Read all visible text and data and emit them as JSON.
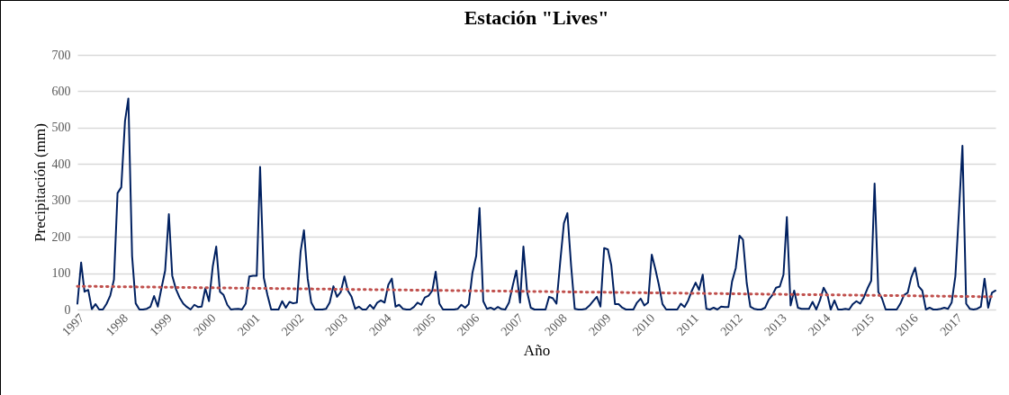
{
  "chart_data": {
    "type": "line",
    "title": "Estación \"Lives\"",
    "xlabel": "Año",
    "ylabel": "Precipitación (mm)",
    "x": [
      "1997-01",
      "1997-02",
      "1997-03",
      "1997-04",
      "1997-05",
      "1997-06",
      "1997-07",
      "1997-08",
      "1997-09",
      "1997-10",
      "1997-11",
      "1997-12",
      "1998-01",
      "1998-02",
      "1998-03",
      "1998-04",
      "1998-05",
      "1998-06",
      "1998-07",
      "1998-08",
      "1998-09",
      "1998-10",
      "1998-11",
      "1998-12",
      "1999-01",
      "1999-02",
      "1999-03",
      "1999-04",
      "1999-05",
      "1999-06",
      "1999-07",
      "1999-08",
      "1999-09",
      "1999-10",
      "1999-11",
      "1999-12",
      "2000-01",
      "2000-02",
      "2000-03",
      "2000-04",
      "2000-05",
      "2000-06",
      "2000-07",
      "2000-08",
      "2000-09",
      "2000-10",
      "2000-11",
      "2000-12",
      "2001-01",
      "2001-02",
      "2001-03",
      "2001-04",
      "2001-05",
      "2001-06",
      "2001-07",
      "2001-08",
      "2001-09",
      "2001-10",
      "2001-11",
      "2001-12",
      "2002-01",
      "2002-02",
      "2002-03",
      "2002-04",
      "2002-05",
      "2002-06",
      "2002-07",
      "2002-08",
      "2002-09",
      "2002-10",
      "2002-11",
      "2002-12",
      "2003-01",
      "2003-02",
      "2003-03",
      "2003-04",
      "2003-05",
      "2003-06",
      "2003-07",
      "2003-08",
      "2003-09",
      "2003-10",
      "2003-11",
      "2003-12",
      "2004-01",
      "2004-02",
      "2004-03",
      "2004-04",
      "2004-05",
      "2004-06",
      "2004-07",
      "2004-08",
      "2004-09",
      "2004-10",
      "2004-11",
      "2004-12",
      "2005-01",
      "2005-02",
      "2005-03",
      "2005-04",
      "2005-05",
      "2005-06",
      "2005-07",
      "2005-08",
      "2005-09",
      "2005-10",
      "2005-11",
      "2005-12",
      "2006-01",
      "2006-02",
      "2006-03",
      "2006-04",
      "2006-05",
      "2006-06",
      "2006-07",
      "2006-08",
      "2006-09",
      "2006-10",
      "2006-11",
      "2006-12",
      "2007-01",
      "2007-02",
      "2007-03",
      "2007-04",
      "2007-05",
      "2007-06",
      "2007-07",
      "2007-08",
      "2007-09",
      "2007-10",
      "2007-11",
      "2007-12",
      "2008-01",
      "2008-02",
      "2008-03",
      "2008-04",
      "2008-05",
      "2008-06",
      "2008-07",
      "2008-08",
      "2008-09",
      "2008-10",
      "2008-11",
      "2008-12",
      "2009-01",
      "2009-02",
      "2009-03",
      "2009-04",
      "2009-05",
      "2009-06",
      "2009-07",
      "2009-08",
      "2009-09",
      "2009-10",
      "2009-11",
      "2009-12",
      "2010-01",
      "2010-02",
      "2010-03",
      "2010-04",
      "2010-05",
      "2010-06",
      "2010-07",
      "2010-08",
      "2010-09",
      "2010-10",
      "2010-11",
      "2010-12",
      "2011-01",
      "2011-02",
      "2011-03",
      "2011-04",
      "2011-05",
      "2011-06",
      "2011-07",
      "2011-08",
      "2011-09",
      "2011-10",
      "2011-11",
      "2011-12",
      "2012-01",
      "2012-02",
      "2012-03",
      "2012-04",
      "2012-05",
      "2012-06",
      "2012-07",
      "2012-08",
      "2012-09",
      "2012-10",
      "2012-11",
      "2012-12",
      "2013-01",
      "2013-02",
      "2013-03",
      "2013-04",
      "2013-05",
      "2013-06",
      "2013-07",
      "2013-08",
      "2013-09",
      "2013-10",
      "2013-11",
      "2013-12",
      "2014-01",
      "2014-02",
      "2014-03",
      "2014-04",
      "2014-05",
      "2014-06",
      "2014-07",
      "2014-08",
      "2014-09",
      "2014-10",
      "2014-11",
      "2014-12",
      "2015-01",
      "2015-02",
      "2015-03",
      "2015-04",
      "2015-05",
      "2015-06",
      "2015-07",
      "2015-08",
      "2015-09",
      "2015-10",
      "2015-11",
      "2015-12",
      "2016-01",
      "2016-02",
      "2016-03",
      "2016-04",
      "2016-05",
      "2016-06",
      "2016-07",
      "2016-08",
      "2016-09",
      "2016-10",
      "2016-11",
      "2016-12",
      "2017-01",
      "2017-02",
      "2017-03",
      "2017-04",
      "2017-05",
      "2017-06",
      "2017-07",
      "2017-08",
      "2017-09",
      "2017-10",
      "2017-11",
      "2017-12"
    ],
    "series": [
      {
        "color": "#002060",
        "values": [
          16,
          129,
          49,
          54,
          1,
          15,
          0,
          0,
          16,
          38,
          82,
          320,
          336,
          518,
          580,
          147,
          17,
          0,
          0,
          2,
          8,
          37,
          8,
          58,
          107,
          262,
          93,
          56,
          33,
          16,
          7,
          0,
          13,
          7,
          8,
          58,
          23,
          118,
          173,
          49,
          40,
          13,
          0,
          1,
          2,
          0,
          16,
          91,
          93,
          93,
          392,
          87,
          40,
          0,
          0,
          0,
          23,
          5,
          21,
          17,
          19,
          159,
          218,
          85,
          19,
          0,
          0,
          0,
          2,
          19,
          64,
          35,
          48,
          91,
          52,
          35,
          2,
          8,
          0,
          0,
          13,
          2,
          19,
          25,
          19,
          68,
          85,
          8,
          13,
          2,
          0,
          0,
          7,
          19,
          13,
          33,
          38,
          52,
          104,
          16,
          0,
          0,
          0,
          0,
          2,
          13,
          5,
          15,
          101,
          147,
          279,
          23,
          2,
          5,
          0,
          7,
          1,
          0,
          19,
          64,
          107,
          19,
          173,
          48,
          5,
          0,
          0,
          0,
          0,
          35,
          31,
          16,
          130,
          237,
          265,
          120,
          2,
          0,
          0,
          2,
          11,
          23,
          35,
          8,
          169,
          165,
          122,
          15,
          15,
          5,
          0,
          0,
          0,
          19,
          30,
          11,
          19,
          151,
          114,
          68,
          15,
          0,
          0,
          0,
          0,
          16,
          7,
          25,
          52,
          74,
          54,
          96,
          2,
          0,
          5,
          0,
          8,
          7,
          7,
          77,
          114,
          203,
          192,
          73,
          8,
          2,
          0,
          0,
          5,
          27,
          40,
          60,
          63,
          96,
          254,
          11,
          52,
          5,
          2,
          2,
          2,
          21,
          0,
          25,
          60,
          41,
          0,
          25,
          0,
          0,
          2,
          0,
          15,
          23,
          16,
          33,
          58,
          79,
          346,
          48,
          31,
          0,
          0,
          0,
          0,
          16,
          40,
          46,
          89,
          115,
          64,
          52,
          0,
          5,
          0,
          0,
          2,
          5,
          2,
          19,
          91,
          275,
          450,
          16,
          2,
          0,
          2,
          8,
          85,
          5,
          46,
          52
        ]
      },
      {
        "type": "line",
        "color": "#c0504d",
        "line_style": "dotted",
        "x": [
          "1997-01",
          "2017-12"
        ],
        "values": [
          64,
          35
        ]
      }
    ],
    "xlim": [
      "1997-01",
      "2017-12"
    ],
    "xticks": [
      "1997",
      "1998",
      "1999",
      "2000",
      "2001",
      "2002",
      "2003",
      "2004",
      "2005",
      "2006",
      "2007",
      "2008",
      "2009",
      "2010",
      "2011",
      "2012",
      "2013",
      "2014",
      "2015",
      "2016",
      "2017"
    ],
    "ylim": [
      0,
      700
    ],
    "yticks": [
      0,
      100,
      200,
      300,
      400,
      500,
      600,
      700
    ],
    "grid": "y"
  }
}
